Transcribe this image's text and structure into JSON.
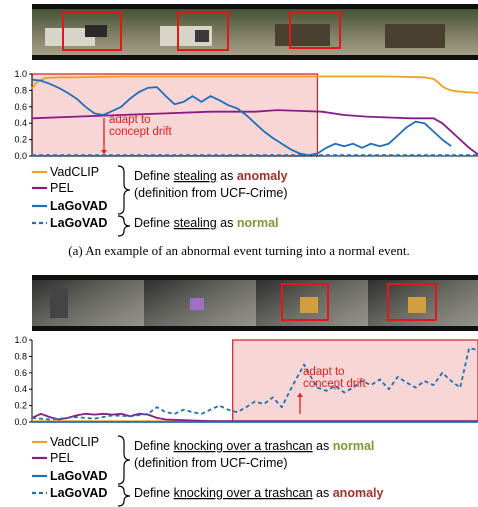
{
  "colors": {
    "vadclip": "#f0a020",
    "pel": "#8a1a8a",
    "lagovad": "#1f6fb8",
    "anomaly": "#a0302a",
    "normal": "#7a9a30",
    "highlight": "#f8d6d6",
    "annot": "#e02020"
  },
  "panel_a": {
    "caption": "(a) An example of an abnormal event turning into a normal event.",
    "annotation": [
      "adapt to",
      "concept drift"
    ],
    "legend": {
      "vadclip": "VadCLIP",
      "pel": "PEL",
      "lagovad": "LaGoVAD",
      "lagovad2": "LaGoVAD",
      "define1_pre": "Define ",
      "define1_u": "stealing",
      "define1_mid": " as ",
      "define1_b": "anomaly",
      "define1_src": "(definition from UCF-Crime)",
      "define2_pre": "Define ",
      "define2_u": "stealing",
      "define2_mid": " as ",
      "define2_b": "normal"
    },
    "chart_data": {
      "type": "line",
      "ylim": [
        0,
        1.0
      ],
      "yticks": [
        "1.0",
        "0.8",
        "0.6",
        "0.4",
        "0.2",
        "0.0"
      ],
      "x_range": [
        0,
        100
      ],
      "highlight_x": [
        0,
        64
      ],
      "series": [
        {
          "name": "VadCLIP",
          "style": "solid",
          "x": [
            0,
            1,
            3,
            6,
            10,
            20,
            30,
            40,
            50,
            60,
            70,
            80,
            88,
            90,
            91,
            92,
            93,
            94,
            95,
            97,
            100
          ],
          "y": [
            0.82,
            0.9,
            0.95,
            0.96,
            0.96,
            0.97,
            0.97,
            0.97,
            0.97,
            0.97,
            0.97,
            0.97,
            0.96,
            0.94,
            0.9,
            0.85,
            0.82,
            0.8,
            0.79,
            0.78,
            0.77
          ]
        },
        {
          "name": "PEL",
          "style": "solid",
          "x": [
            0,
            10,
            20,
            30,
            40,
            50,
            55,
            60,
            65,
            70,
            75,
            80,
            85,
            88,
            90,
            92,
            95,
            98,
            100
          ],
          "y": [
            0.46,
            0.48,
            0.5,
            0.52,
            0.54,
            0.54,
            0.56,
            0.55,
            0.54,
            0.5,
            0.48,
            0.47,
            0.46,
            0.46,
            0.46,
            0.4,
            0.25,
            0.1,
            0.02
          ]
        },
        {
          "name": "LaGoVAD",
          "style": "solid",
          "x": [
            0,
            2,
            4,
            6,
            8,
            10,
            12,
            14,
            16,
            18,
            20,
            22,
            24,
            26,
            28,
            30,
            32,
            34,
            36,
            38,
            40,
            42,
            44,
            46,
            48,
            50,
            52,
            54,
            56,
            58,
            60,
            62,
            64,
            66,
            68,
            70,
            72,
            74,
            76,
            78,
            80,
            82,
            84,
            86,
            88,
            90,
            92,
            94
          ],
          "y": [
            0.93,
            0.92,
            0.88,
            0.83,
            0.77,
            0.7,
            0.6,
            0.52,
            0.5,
            0.55,
            0.6,
            0.7,
            0.78,
            0.83,
            0.84,
            0.73,
            0.63,
            0.66,
            0.73,
            0.66,
            0.73,
            0.68,
            0.62,
            0.58,
            0.5,
            0.4,
            0.3,
            0.22,
            0.15,
            0.08,
            0.03,
            0.01,
            0.03,
            0.1,
            0.15,
            0.12,
            0.15,
            0.1,
            0.15,
            0.12,
            0.15,
            0.25,
            0.35,
            0.42,
            0.4,
            0.3,
            0.2,
            0.12
          ]
        },
        {
          "name": "LaGoVAD",
          "style": "dashed",
          "x": [
            0,
            100
          ],
          "y": [
            0.01,
            0.01
          ]
        }
      ]
    }
  },
  "panel_b": {
    "annotation": [
      "adapt to",
      "concept drift"
    ],
    "legend": {
      "vadclip": "VadCLIP",
      "pel": "PEL",
      "lagovad": "LaGoVAD",
      "lagovad2": "LaGoVAD",
      "define1_pre": "Define ",
      "define1_u": "knocking over a trashcan",
      "define1_mid": " as ",
      "define1_b": "normal",
      "define1_src": "(definition from UCF-Crime)",
      "define2_pre": "Define ",
      "define2_u": "knocking over a trashcan",
      "define2_mid": " as ",
      "define2_b": "anomaly"
    },
    "chart_data": {
      "type": "line",
      "ylim": [
        0,
        1.0
      ],
      "yticks": [
        "1.0",
        "0.8",
        "0.6",
        "0.4",
        "0.2",
        "0.0"
      ],
      "x_range": [
        0,
        100
      ],
      "highlight_x": [
        45,
        100
      ],
      "series": [
        {
          "name": "VadCLIP",
          "style": "solid",
          "x": [
            0,
            100
          ],
          "y": [
            0.01,
            0.01
          ]
        },
        {
          "name": "PEL",
          "style": "solid",
          "x": [
            0,
            2,
            4,
            6,
            8,
            10,
            12,
            14,
            16,
            18,
            20,
            22,
            24,
            26,
            28,
            30,
            40,
            50,
            60,
            70,
            80,
            90,
            100
          ],
          "y": [
            0.05,
            0.1,
            0.06,
            0.03,
            0.05,
            0.08,
            0.1,
            0.09,
            0.1,
            0.09,
            0.1,
            0.07,
            0.1,
            0.09,
            0.05,
            0.03,
            0.01,
            0.01,
            0.01,
            0.01,
            0.01,
            0.01,
            0.01
          ]
        },
        {
          "name": "LaGoVAD",
          "style": "solid",
          "x": [
            0,
            100
          ],
          "y": [
            0.0,
            0.0
          ]
        },
        {
          "name": "LaGoVAD",
          "style": "dashed",
          "x": [
            0,
            4,
            8,
            10,
            14,
            18,
            22,
            26,
            28,
            30,
            32,
            34,
            36,
            38,
            40,
            42,
            44,
            46,
            48,
            50,
            52,
            54,
            56,
            58,
            60,
            61,
            62,
            64,
            66,
            68,
            70,
            72,
            74,
            76,
            78,
            80,
            82,
            84,
            86,
            88,
            90,
            92,
            94,
            96,
            98,
            100
          ],
          "y": [
            0.05,
            0.03,
            0.05,
            0.06,
            0.04,
            0.08,
            0.07,
            0.1,
            0.18,
            0.12,
            0.1,
            0.15,
            0.12,
            0.1,
            0.15,
            0.2,
            0.15,
            0.12,
            0.18,
            0.25,
            0.22,
            0.3,
            0.18,
            0.4,
            0.6,
            0.7,
            0.6,
            0.42,
            0.38,
            0.44,
            0.36,
            0.42,
            0.5,
            0.45,
            0.52,
            0.4,
            0.55,
            0.48,
            0.42,
            0.5,
            0.45,
            0.6,
            0.5,
            0.42,
            0.9,
            0.88
          ]
        }
      ]
    }
  }
}
